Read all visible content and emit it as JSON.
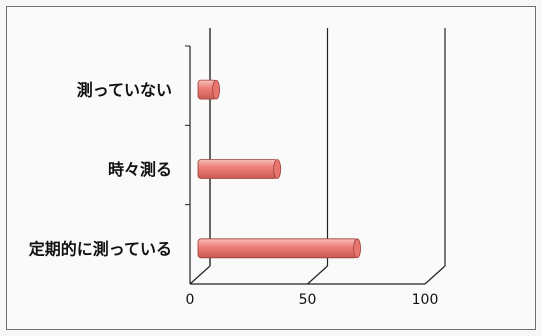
{
  "chart_data": {
    "type": "bar",
    "orientation": "horizontal",
    "categories": [
      "測っていない",
      "時々測る",
      "定期的に測っている"
    ],
    "values": [
      6,
      32,
      66
    ],
    "xlim": [
      0,
      100
    ],
    "xticks": [
      0,
      50,
      100
    ],
    "title": "",
    "xlabel": "",
    "ylabel": "",
    "grid": true,
    "legend": "none",
    "bar_color": "#e9756f",
    "bar_highlight": "#f6b4af"
  }
}
